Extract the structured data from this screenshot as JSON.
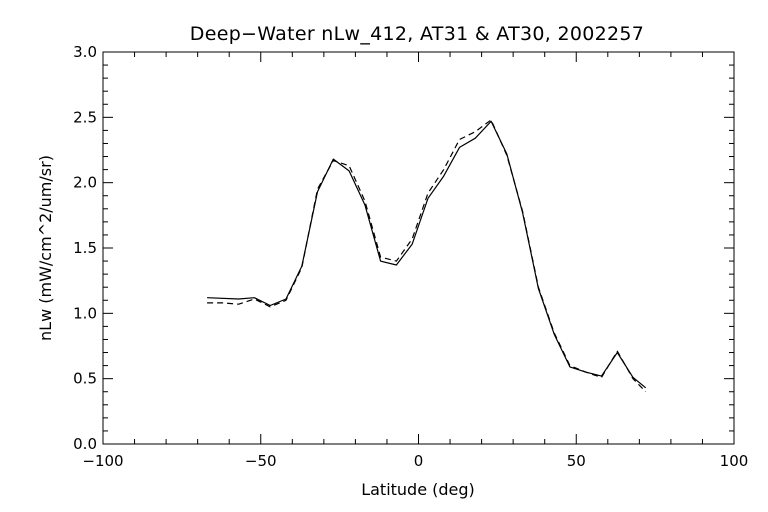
{
  "chart_data": {
    "type": "line",
    "title": "Deep−Water nLw_412, AT31 & AT30, 2002257",
    "xlabel": "Latitude (deg)",
    "ylabel": "nLw (mW/cm^2/um/sr)",
    "xlim": [
      -100,
      100
    ],
    "ylim": [
      0.0,
      3.0
    ],
    "x_ticks": [
      -100,
      -50,
      0,
      50,
      100
    ],
    "x_tick_labels": [
      "−100",
      "−50",
      "0",
      "50",
      "100"
    ],
    "y_ticks": [
      0.0,
      0.5,
      1.0,
      1.5,
      2.0,
      2.5,
      3.0
    ],
    "y_tick_labels": [
      "0.0",
      "0.5",
      "1.0",
      "1.5",
      "2.0",
      "2.5",
      "3.0"
    ],
    "grid": false,
    "series": [
      {
        "style": "solid",
        "color": "#000000",
        "x": [
          -67,
          -57,
          -52,
          -47,
          -42,
          -37,
          -32,
          -27,
          -22,
          -17,
          -12,
          -7,
          -2,
          3,
          8,
          13,
          18,
          23,
          28,
          33,
          38,
          43,
          48,
          53,
          58,
          63,
          68,
          72
        ],
        "y": [
          1.12,
          1.11,
          1.12,
          1.06,
          1.11,
          1.36,
          1.93,
          2.18,
          2.09,
          1.83,
          1.4,
          1.37,
          1.53,
          1.88,
          2.05,
          2.27,
          2.34,
          2.47,
          2.22,
          1.77,
          1.19,
          0.84,
          0.59,
          0.55,
          0.52,
          0.7,
          0.51,
          0.43
        ]
      },
      {
        "style": "dashed",
        "color": "#000000",
        "x": [
          -67,
          -62,
          -57,
          -52,
          -47,
          -42,
          -37,
          -32,
          -27,
          -22,
          -17,
          -12,
          -7,
          -2,
          3,
          8,
          13,
          18,
          23,
          28,
          33,
          38,
          43,
          48,
          53,
          58,
          63,
          68,
          72
        ],
        "y": [
          1.08,
          1.08,
          1.07,
          1.11,
          1.05,
          1.1,
          1.35,
          1.95,
          2.17,
          2.13,
          1.86,
          1.43,
          1.4,
          1.57,
          1.92,
          2.1,
          2.33,
          2.39,
          2.48,
          2.21,
          1.78,
          1.2,
          0.85,
          0.6,
          0.55,
          0.51,
          0.71,
          0.5,
          0.4
        ]
      }
    ]
  }
}
